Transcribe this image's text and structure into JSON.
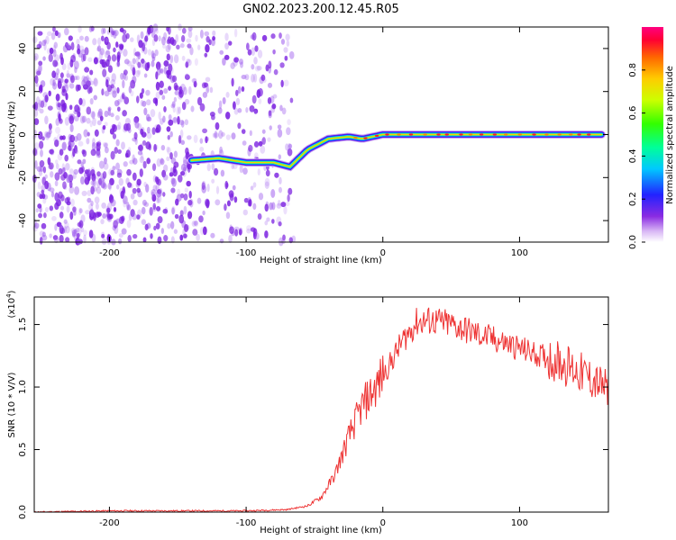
{
  "title": "GN02.2023.200.12.45.R05",
  "chart_data": [
    {
      "type": "heatmap",
      "name": "spectrogram",
      "xlabel": "Height of straight line (km)",
      "ylabel": "Frequency (Hz)",
      "xlim": [
        -255,
        165
      ],
      "ylim": [
        -50,
        50
      ],
      "xticks": [
        "-200",
        "-100",
        "0",
        "100"
      ],
      "yticks": [
        "40",
        "20",
        "0",
        "-20",
        "-40"
      ],
      "colorbar": {
        "label": "Normalized spectral amplitude",
        "range": [
          0,
          1
        ],
        "ticks": [
          "0.0",
          "0.2",
          "0.4",
          "0.6",
          "0.8"
        ]
      },
      "signal_track": [
        {
          "x": -140,
          "y": -12
        },
        {
          "x": -120,
          "y": -11
        },
        {
          "x": -100,
          "y": -13
        },
        {
          "x": -80,
          "y": -13
        },
        {
          "x": -68,
          "y": -15
        },
        {
          "x": -55,
          "y": -7
        },
        {
          "x": -40,
          "y": -2
        },
        {
          "x": -25,
          "y": -1
        },
        {
          "x": -15,
          "y": -2
        },
        {
          "x": 0,
          "y": 0
        },
        {
          "x": 50,
          "y": 0
        },
        {
          "x": 100,
          "y": 0
        },
        {
          "x": 160,
          "y": 0
        }
      ],
      "noise_region_x": [
        -255,
        -75
      ]
    },
    {
      "type": "line",
      "name": "snr",
      "xlabel": "Height of straight line (km)",
      "ylabel": "SNR (10 * V/V)",
      "y_multiplier": "(x10",
      "y_multiplier_exp": "4",
      "y_multiplier_close": ")",
      "xlim": [
        -255,
        165
      ],
      "ylim": [
        0,
        1.72
      ],
      "xticks": [
        "-200",
        "-100",
        "0",
        "100"
      ],
      "yticks": [
        "0.0",
        "0.5",
        "1.0",
        "1.5"
      ],
      "color": "#ee3333",
      "series": [
        {
          "x": [
            -255,
            -200,
            -150,
            -100,
            -70,
            -55,
            -45,
            -35,
            -25,
            -15,
            -5,
            5,
            15,
            25,
            35,
            50,
            70,
            90,
            110,
            130,
            150,
            165
          ],
          "values": [
            0.0,
            0.01,
            0.01,
            0.01,
            0.02,
            0.05,
            0.12,
            0.3,
            0.6,
            0.85,
            1.0,
            1.18,
            1.38,
            1.52,
            1.53,
            1.5,
            1.42,
            1.35,
            1.27,
            1.2,
            1.08,
            0.97
          ]
        }
      ]
    }
  ]
}
